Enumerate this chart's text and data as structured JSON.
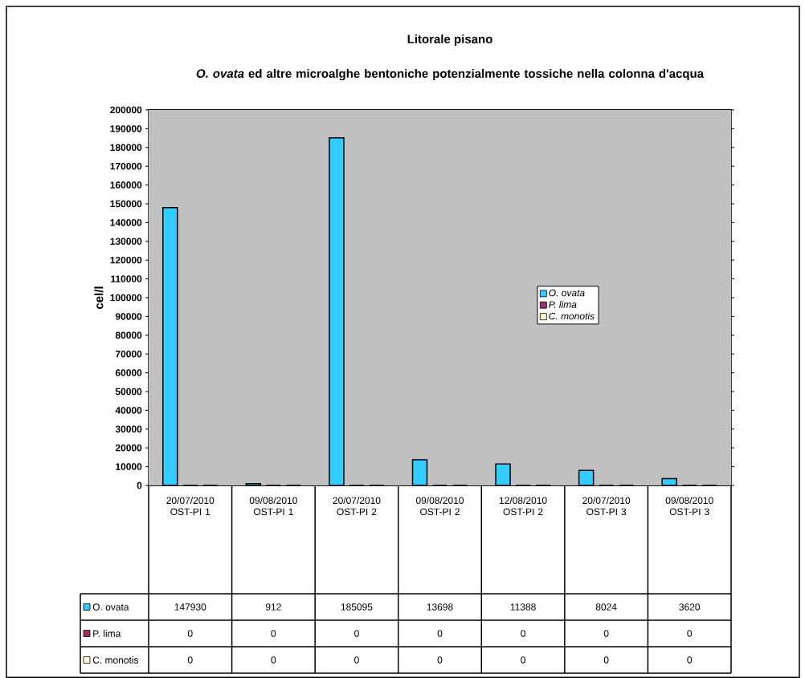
{
  "chart_data": {
    "type": "bar",
    "title": "Litorale pisano",
    "subtitle": "*O. ovata* ed altre microalghe bentoniche potenzialmente tossiche nella colonna d'acqua",
    "ylabel": "cel/l",
    "categories": [
      "20/07/2010 OST-PI 1",
      "09/08/2010 OST-PI 1",
      "20/07/2010 OST-PI 2",
      "09/08/2010 OST-PI 2",
      "12/08/2010 OST-PI 2",
      "20/07/2010 OST-PI 3",
      "09/08/2010 OST-PI 3"
    ],
    "series": [
      {
        "name": "O. ovata",
        "color": "#33ccff",
        "values": [
          147930,
          912,
          185095,
          13698,
          11388,
          8024,
          3620
        ]
      },
      {
        "name": "P. lima",
        "color": "#993366",
        "values": [
          0,
          0,
          0,
          0,
          0,
          0,
          0
        ]
      },
      {
        "name": "C. monotis",
        "color": "#ffffcc",
        "values": [
          0,
          0,
          0,
          0,
          0,
          0,
          0
        ]
      }
    ],
    "ylim": [
      0,
      200000
    ],
    "yticks": [
      0,
      10000,
      20000,
      30000,
      40000,
      50000,
      60000,
      70000,
      80000,
      90000,
      100000,
      110000,
      120000,
      130000,
      140000,
      150000,
      160000,
      170000,
      180000,
      190000,
      200000
    ],
    "grid": "y",
    "legend": "right",
    "data_labels": true
  }
}
